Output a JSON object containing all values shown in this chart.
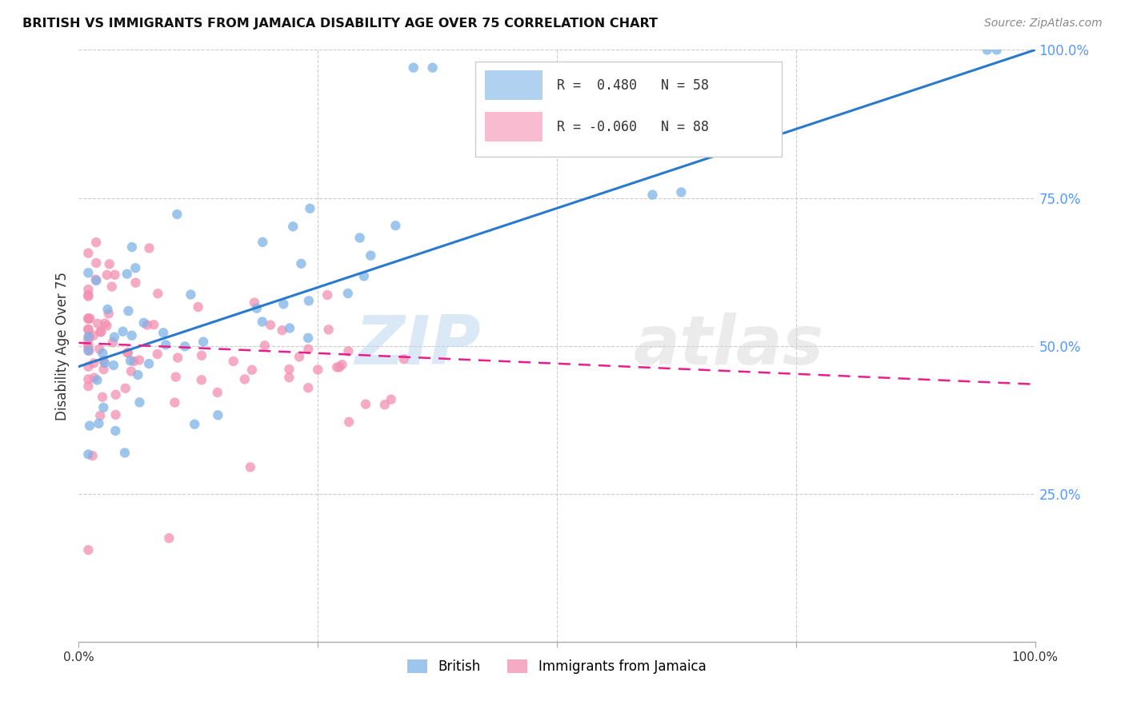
{
  "title": "BRITISH VS IMMIGRANTS FROM JAMAICA DISABILITY AGE OVER 75 CORRELATION CHART",
  "source": "Source: ZipAtlas.com",
  "ylabel": "Disability Age Over 75",
  "watermark": "ZIPatlas",
  "xlim": [
    0.0,
    1.0
  ],
  "ylim": [
    0.0,
    1.0
  ],
  "legend_british_R": "0.480",
  "legend_british_N": "58",
  "legend_jamaica_R": "-0.060",
  "legend_jamaica_N": "88",
  "british_color": "#7EB3E8",
  "jamaica_color": "#F48FB1",
  "trendline_british_color": "#2979CC",
  "trendline_jamaica_color": "#E91E8C",
  "grid_color": "#cccccc",
  "background_color": "#ffffff",
  "right_axis_color": "#5599FF",
  "british_trend_x": [
    0.0,
    1.0
  ],
  "british_trend_y": [
    0.465,
    1.0
  ],
  "jamaica_trend_x": [
    0.0,
    1.0
  ],
  "jamaica_trend_y": [
    0.505,
    0.435
  ]
}
